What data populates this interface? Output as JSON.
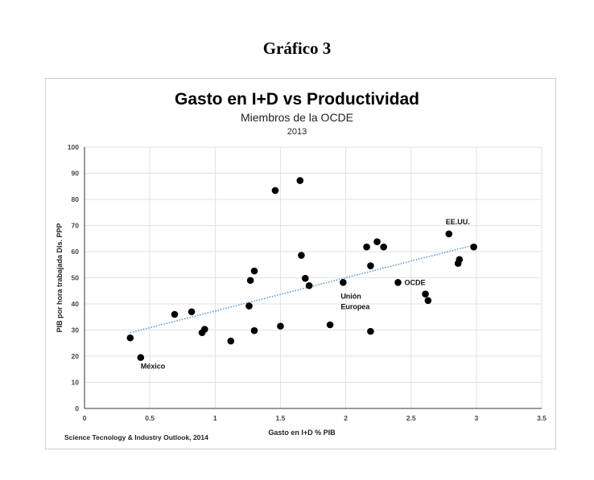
{
  "figure_title": "Gráfico 3",
  "source": "Science Tecnology & Industry Outlook, 2014",
  "chart_data": {
    "type": "scatter",
    "title": "Gasto en I+D vs Productividad",
    "subtitle": "Miembros de la OCDE",
    "subtitle2": "2013",
    "xlabel": "Gasto en I+D % PIB",
    "ylabel": "PIB por hora trabajada Dls. PPP",
    "xlim": [
      0,
      3.5
    ],
    "ylim": [
      0,
      100
    ],
    "xticks": [
      "0",
      "0.5",
      "1",
      "1.5",
      "2",
      "2.5",
      "3",
      "3.5"
    ],
    "yticks": [
      "0",
      "10",
      "20",
      "30",
      "40",
      "50",
      "60",
      "70",
      "80",
      "90",
      "100"
    ],
    "grid": true,
    "marker_color": "#000000",
    "trendline_color": "#5b9bd5",
    "points": [
      {
        "x": 0.35,
        "y": 27
      },
      {
        "x": 0.43,
        "y": 19.5,
        "label": "México"
      },
      {
        "x": 0.69,
        "y": 36
      },
      {
        "x": 0.82,
        "y": 37
      },
      {
        "x": 0.9,
        "y": 29
      },
      {
        "x": 0.92,
        "y": 30.3
      },
      {
        "x": 1.12,
        "y": 25.8
      },
      {
        "x": 1.26,
        "y": 39.2
      },
      {
        "x": 1.27,
        "y": 49
      },
      {
        "x": 1.3,
        "y": 52.6
      },
      {
        "x": 1.3,
        "y": 29.8
      },
      {
        "x": 1.46,
        "y": 83.4
      },
      {
        "x": 1.5,
        "y": 31.5
      },
      {
        "x": 1.65,
        "y": 87.2
      },
      {
        "x": 1.66,
        "y": 58.6
      },
      {
        "x": 1.69,
        "y": 49.8
      },
      {
        "x": 1.72,
        "y": 47
      },
      {
        "x": 1.88,
        "y": 32
      },
      {
        "x": 1.98,
        "y": 48.2,
        "label": "Unión Europea"
      },
      {
        "x": 2.16,
        "y": 61.8
      },
      {
        "x": 2.19,
        "y": 54.6
      },
      {
        "x": 2.19,
        "y": 29.5
      },
      {
        "x": 2.24,
        "y": 63.8
      },
      {
        "x": 2.29,
        "y": 61.8
      },
      {
        "x": 2.4,
        "y": 48.2,
        "label": "OCDE"
      },
      {
        "x": 2.61,
        "y": 43.8
      },
      {
        "x": 2.63,
        "y": 41.3
      },
      {
        "x": 2.79,
        "y": 66.8,
        "label": "EE.UU."
      },
      {
        "x": 2.86,
        "y": 55.5
      },
      {
        "x": 2.87,
        "y": 57
      },
      {
        "x": 2.98,
        "y": 61.8
      }
    ],
    "trendline": {
      "type": "linear",
      "from": {
        "x": 0.35,
        "y": 29
      },
      "to": {
        "x": 2.98,
        "y": 62.5
      }
    }
  }
}
